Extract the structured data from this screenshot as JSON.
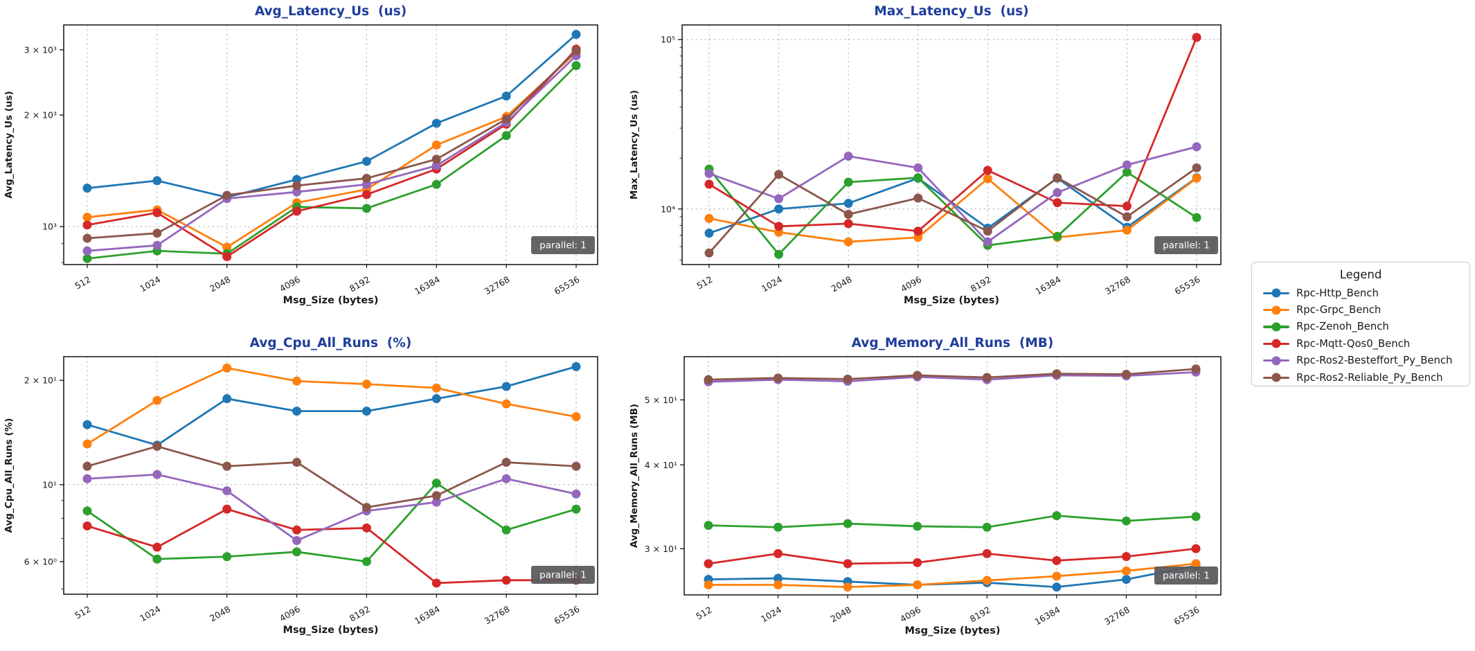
{
  "style": {
    "title_color": "#1e3d9b",
    "axis_text_color": "#1a1a1a",
    "grid_color": "#b3b3b3",
    "spine_color": "#000000"
  },
  "badge": {
    "text": "parallel: 1",
    "bg": "#58585a",
    "fg": "#ffffff"
  },
  "x_label": "Msg_Size (bytes)",
  "x_categories": [
    "512",
    "1024",
    "2048",
    "4096",
    "8192",
    "16384",
    "32768",
    "65536"
  ],
  "legend": {
    "title": "Legend",
    "items": [
      {
        "label": "Rpc-Http_Bench",
        "color": "#1f77b4"
      },
      {
        "label": "Rpc-Grpc_Bench",
        "color": "#ff7f0e"
      },
      {
        "label": "Rpc-Zenoh_Bench",
        "color": "#2ca02c"
      },
      {
        "label": "Rpc-Mqtt-Qos0_Bench",
        "color": "#d62728"
      },
      {
        "label": "Rpc-Ros2-Besteffort_Py_Bench",
        "color": "#9467bd"
      },
      {
        "label": "Rpc-Ros2-Reliable_Py_Bench",
        "color": "#8c564b"
      }
    ]
  },
  "chart_data": [
    {
      "id": "avg-latency-us",
      "type": "line",
      "title": "Avg_Latency_Us  (us)",
      "ylabel": "Avg_Latency_Us (us)",
      "xlabel": "Msg_Size (bytes)",
      "yscale": "log",
      "ylim": [
        790,
        3500
      ],
      "yticks": [
        {
          "value": 1000,
          "label": "10³",
          "grid": true
        },
        {
          "value": 2000,
          "label": "2 × 10³",
          "grid": false
        },
        {
          "value": 3000,
          "label": "3 × 10³",
          "grid": false
        }
      ],
      "annotation": "parallel: 1",
      "categories": [
        512,
        1024,
        2048,
        4096,
        8192,
        16384,
        32768,
        65536
      ],
      "series": [
        {
          "name": "Rpc-Http_Bench",
          "color": "#1f77b4",
          "values": [
            1270,
            1330,
            1200,
            1340,
            1500,
            1900,
            2250,
            3300
          ]
        },
        {
          "name": "Rpc-Grpc_Bench",
          "color": "#ff7f0e",
          "values": [
            1060,
            1110,
            880,
            1160,
            1260,
            1660,
            1980,
            2950
          ]
        },
        {
          "name": "Rpc-Zenoh_Bench",
          "color": "#2ca02c",
          "values": [
            820,
            860,
            845,
            1130,
            1120,
            1300,
            1760,
            2720
          ]
        },
        {
          "name": "Rpc-Mqtt-Qos0_Bench",
          "color": "#d62728",
          "values": [
            1010,
            1090,
            830,
            1100,
            1220,
            1430,
            1890,
            3010
          ]
        },
        {
          "name": "Rpc-Ros2-Besteffort_Py_Bench",
          "color": "#9467bd",
          "values": [
            860,
            890,
            1190,
            1240,
            1300,
            1460,
            1910,
            2890
          ]
        },
        {
          "name": "Rpc-Ros2-Reliable_Py_Bench",
          "color": "#8c564b",
          "values": [
            930,
            960,
            1215,
            1290,
            1350,
            1520,
            1950,
            2980
          ]
        }
      ]
    },
    {
      "id": "max-latency-us",
      "type": "line",
      "title": "Max_Latency_Us  (us)",
      "ylabel": "Max_Latency_Us (us)",
      "xlabel": "Msg_Size (bytes)",
      "yscale": "log",
      "ylim": [
        4700,
        122000
      ],
      "yticks": [
        {
          "value": 10000,
          "label": "10⁴",
          "grid": true
        },
        {
          "value": 100000,
          "label": "10⁵",
          "grid": true
        }
      ],
      "annotation": "parallel: 1",
      "categories": [
        512,
        1024,
        2048,
        4096,
        8192,
        16384,
        32768,
        65536
      ],
      "series": [
        {
          "name": "Rpc-Http_Bench",
          "color": "#1f77b4",
          "values": [
            7200,
            10000,
            10800,
            15200,
            7700,
            15200,
            7800,
            15300
          ]
        },
        {
          "name": "Rpc-Grpc_Bench",
          "color": "#ff7f0e",
          "values": [
            8800,
            7300,
            6400,
            6800,
            15100,
            6800,
            7500,
            15200
          ]
        },
        {
          "name": "Rpc-Zenoh_Bench",
          "color": "#2ca02c",
          "values": [
            17200,
            5400,
            14400,
            15300,
            6100,
            6900,
            16500,
            8900
          ]
        },
        {
          "name": "Rpc-Mqtt-Qos0_Bench",
          "color": "#d62728",
          "values": [
            14000,
            7900,
            8200,
            7400,
            16900,
            10900,
            10400,
            103000
          ]
        },
        {
          "name": "Rpc-Ros2-Besteffort_Py_Bench",
          "color": "#9467bd",
          "values": [
            16200,
            11500,
            20500,
            17500,
            6400,
            12500,
            18200,
            23300
          ]
        },
        {
          "name": "Rpc-Ros2-Reliable_Py_Bench",
          "color": "#8c564b",
          "values": [
            5500,
            16000,
            9300,
            11600,
            7400,
            15300,
            9000,
            17500
          ]
        }
      ]
    },
    {
      "id": "avg-cpu-all-runs",
      "type": "line",
      "title": "Avg_Cpu_All_Runs  (%)",
      "ylabel": "Avg_Cpu_All_Runs (%)",
      "xlabel": "Msg_Size (bytes)",
      "yscale": "log",
      "ylim": [
        4.83,
        23.4
      ],
      "yticks": [
        {
          "value": 6,
          "label": "6 × 10⁰",
          "grid": false
        },
        {
          "value": 10,
          "label": "10¹",
          "grid": true
        },
        {
          "value": 20,
          "label": "2 × 10¹",
          "grid": false
        }
      ],
      "annotation": "parallel: 1",
      "categories": [
        512,
        1024,
        2048,
        4096,
        8192,
        16384,
        32768,
        65536
      ],
      "series": [
        {
          "name": "Rpc-Http_Bench",
          "color": "#1f77b4",
          "values": [
            14.9,
            13.0,
            17.7,
            16.3,
            16.3,
            17.7,
            19.2,
            21.9
          ]
        },
        {
          "name": "Rpc-Grpc_Bench",
          "color": "#ff7f0e",
          "values": [
            13.1,
            17.5,
            21.7,
            19.9,
            19.5,
            19.0,
            17.1,
            15.7
          ]
        },
        {
          "name": "Rpc-Zenoh_Bench",
          "color": "#2ca02c",
          "values": [
            8.4,
            6.1,
            6.2,
            6.4,
            6.0,
            10.1,
            7.4,
            8.5
          ]
        },
        {
          "name": "Rpc-Mqtt-Qos0_Bench",
          "color": "#d62728",
          "values": [
            7.6,
            6.6,
            8.5,
            7.4,
            7.5,
            5.2,
            5.3,
            5.3
          ]
        },
        {
          "name": "Rpc-Ros2-Besteffort_Py_Bench",
          "color": "#9467bd",
          "values": [
            10.4,
            10.7,
            9.6,
            6.9,
            8.4,
            8.9,
            10.4,
            9.4
          ]
        },
        {
          "name": "Rpc-Ros2-Reliable_Py_Bench",
          "color": "#8c564b",
          "values": [
            11.3,
            12.9,
            11.3,
            11.6,
            8.6,
            9.3,
            11.6,
            11.3
          ]
        }
      ]
    },
    {
      "id": "avg-memory-all-runs",
      "type": "line",
      "title": "Avg_Memory_All_Runs  (MB)",
      "ylabel": "Avg_Memory_All_Runs (MB)",
      "xlabel": "Msg_Size (bytes)",
      "yscale": "log",
      "ylim": [
        25.6,
        58
      ],
      "yticks": [
        {
          "value": 30,
          "label": "3 × 10¹",
          "grid": false
        },
        {
          "value": 40,
          "label": "4 × 10¹",
          "grid": false
        },
        {
          "value": 50,
          "label": "5 × 10¹",
          "grid": false
        }
      ],
      "annotation": "parallel: 1",
      "categories": [
        512,
        1024,
        2048,
        4096,
        8192,
        16384,
        32768,
        65536
      ],
      "series": [
        {
          "name": "Rpc-Http_Bench",
          "color": "#1f77b4",
          "values": [
            27.0,
            27.1,
            26.8,
            26.5,
            26.7,
            26.3,
            27.0,
            28.3
          ]
        },
        {
          "name": "Rpc-Grpc_Bench",
          "color": "#ff7f0e",
          "values": [
            26.5,
            26.5,
            26.3,
            26.5,
            26.9,
            27.3,
            27.8,
            28.5
          ]
        },
        {
          "name": "Rpc-Zenoh_Bench",
          "color": "#2ca02c",
          "values": [
            32.5,
            32.3,
            32.7,
            32.4,
            32.3,
            33.6,
            33.0,
            33.5
          ]
        },
        {
          "name": "Rpc-Mqtt-Qos0_Bench",
          "color": "#d62728",
          "values": [
            28.5,
            29.5,
            28.5,
            28.6,
            29.5,
            28.8,
            29.2,
            30.0
          ]
        },
        {
          "name": "Rpc-Ros2-Besteffort_Py_Bench",
          "color": "#9467bd",
          "values": [
            53.2,
            53.6,
            53.3,
            54.1,
            53.6,
            54.4,
            54.3,
            55.0
          ]
        },
        {
          "name": "Rpc-Ros2-Reliable_Py_Bench",
          "color": "#8c564b",
          "values": [
            53.6,
            53.9,
            53.7,
            54.4,
            54.0,
            54.7,
            54.6,
            55.6
          ]
        }
      ]
    }
  ]
}
